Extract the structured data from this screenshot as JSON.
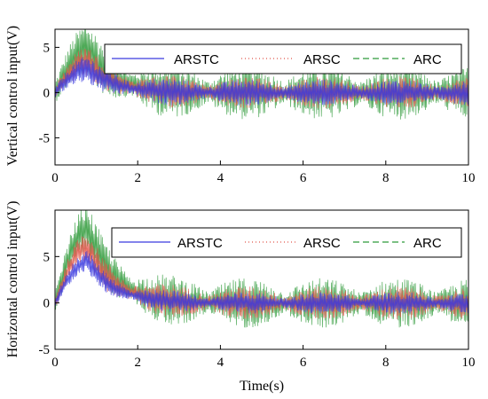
{
  "colors": {
    "ARSTC": "#3a3adf",
    "ARSC": "#e0564a",
    "ARC": "#2f9a3a"
  },
  "chart_data": [
    {
      "type": "line",
      "ylabel": "Vertical control input(V)",
      "xlabel": "",
      "xlim": [
        0,
        10
      ],
      "ylim": [
        -8,
        7
      ],
      "xticks": [
        "0",
        "2",
        "4",
        "6",
        "8",
        "10"
      ],
      "yticks": [
        "-5",
        "0",
        "5"
      ],
      "grid": false,
      "legend_position": "top",
      "legend": [
        "ARSTC",
        "ARSC",
        "ARC"
      ],
      "series": [
        {
          "name": "ARSTC",
          "peak_x": 0.8,
          "peak_y": 2.6,
          "oscillation_amplitude": 1.0
        },
        {
          "name": "ARSC",
          "peak_x": 0.8,
          "peak_y": 3.4,
          "oscillation_amplitude": 1.2
        },
        {
          "name": "ARC",
          "peak_x": 0.8,
          "peak_y": 4.8,
          "oscillation_amplitude": 2.0
        }
      ]
    },
    {
      "type": "line",
      "ylabel": "Horizontal control input(V)",
      "xlabel": "Time(s)",
      "xlim": [
        0,
        10
      ],
      "ylim": [
        -5,
        10
      ],
      "xticks": [
        "0",
        "2",
        "4",
        "6",
        "8",
        "10"
      ],
      "yticks": [
        "-5",
        "0",
        "5"
      ],
      "grid": false,
      "legend_position": "top",
      "legend": [
        "ARSTC",
        "ARSC",
        "ARC"
      ],
      "series": [
        {
          "name": "ARSTC",
          "peak_x": 0.8,
          "peak_y": 4.5,
          "oscillation_amplitude": 0.8
        },
        {
          "name": "ARSC",
          "peak_x": 0.8,
          "peak_y": 6.0,
          "oscillation_amplitude": 1.2
        },
        {
          "name": "ARC",
          "peak_x": 0.8,
          "peak_y": 8.0,
          "oscillation_amplitude": 1.8
        }
      ]
    }
  ]
}
